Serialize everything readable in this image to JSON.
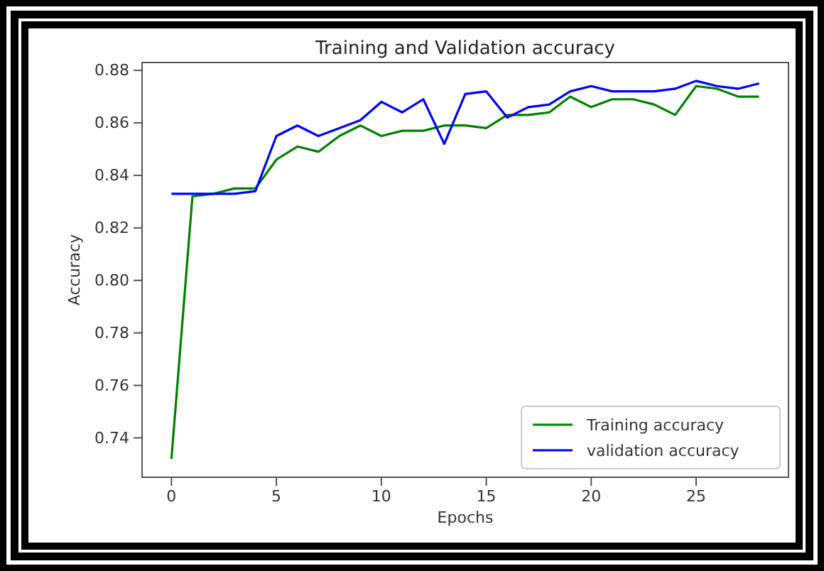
{
  "chart_data": {
    "type": "line",
    "title": "Training and Validation accuracy",
    "xlabel": "Epochs",
    "ylabel": "Accuracy",
    "x": [
      0,
      1,
      2,
      3,
      4,
      5,
      6,
      7,
      8,
      9,
      10,
      11,
      12,
      13,
      14,
      15,
      16,
      17,
      18,
      19,
      20,
      21,
      22,
      23,
      24,
      25,
      26,
      27,
      28
    ],
    "series": [
      {
        "name": "Training accuracy",
        "color": "#008000",
        "values": [
          0.732,
          0.832,
          0.833,
          0.835,
          0.835,
          0.846,
          0.851,
          0.849,
          0.855,
          0.859,
          0.855,
          0.857,
          0.857,
          0.859,
          0.859,
          0.858,
          0.863,
          0.863,
          0.864,
          0.87,
          0.866,
          0.869,
          0.869,
          0.867,
          0.863,
          0.874,
          0.873,
          0.87,
          0.87
        ]
      },
      {
        "name": "validation accuracy",
        "color": "#0000ff",
        "values": [
          0.833,
          0.833,
          0.833,
          0.833,
          0.834,
          0.855,
          0.859,
          0.855,
          0.858,
          0.861,
          0.868,
          0.864,
          0.869,
          0.852,
          0.871,
          0.872,
          0.862,
          0.866,
          0.867,
          0.872,
          0.874,
          0.872,
          0.872,
          0.872,
          0.873,
          0.876,
          0.874,
          0.873,
          0.875
        ]
      }
    ],
    "xlim": [
      -1.4,
      29.4
    ],
    "ylim": [
      0.725,
      0.883
    ],
    "xticks": [
      0,
      5,
      10,
      15,
      20,
      25
    ],
    "yticks": [
      {
        "value": 0.74,
        "label": "0.74"
      },
      {
        "value": 0.76,
        "label": "0.76"
      },
      {
        "value": 0.78,
        "label": "0.78"
      },
      {
        "value": 0.8,
        "label": "0.80"
      },
      {
        "value": 0.82,
        "label": "0.82"
      },
      {
        "value": 0.84,
        "label": "0.84"
      },
      {
        "value": 0.86,
        "label": "0.86"
      },
      {
        "value": 0.88,
        "label": "0.88"
      }
    ],
    "legend": "bottom right",
    "grid": false,
    "line_style": "solid",
    "marker": "none"
  }
}
